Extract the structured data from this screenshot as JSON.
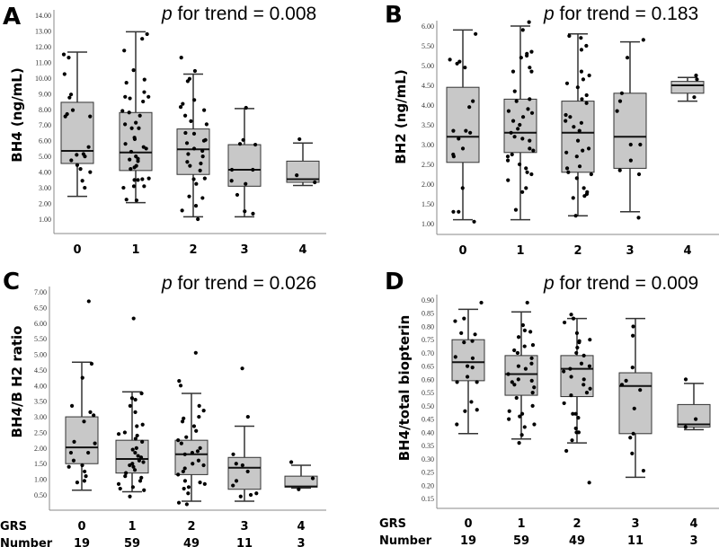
{
  "chart_data": [
    {
      "type": "box",
      "letter": "A",
      "title_p": "p",
      "title_rest": " for trend = 0.008",
      "ylabel": "BH4 (ng/mL)",
      "ylim": [
        1,
        14
      ],
      "ticks": [
        "1.00",
        "2.00",
        "3.00",
        "4.00",
        "5.00",
        "6.00",
        "7.00",
        "8.00",
        "9.00",
        "10.00",
        "11.00",
        "12.00",
        "13.00",
        "14.00"
      ],
      "categories": [
        "0",
        "1",
        "2",
        "3",
        "4"
      ],
      "boxes": [
        {
          "whisker_low": 2.45,
          "q1": 4.55,
          "median": 5.35,
          "q3": 8.45,
          "whisker_high": 11.65,
          "points": [
            11.5,
            11.3,
            10.25,
            8.95,
            8.75,
            7.55,
            7.55,
            7.7,
            7.95,
            5.6,
            5.15,
            5.0,
            5.1,
            4.75,
            4.45,
            4.2,
            4.0,
            3.45,
            3.0
          ]
        },
        {
          "whisker_low": 2.05,
          "q1": 4.1,
          "median": 5.25,
          "q3": 7.8,
          "whisker_high": 12.95,
          "points": [
            12.8,
            12.5,
            11.75,
            10.5,
            9.9,
            9.7,
            9.1,
            8.8,
            8.8,
            8.7,
            8.5,
            7.9,
            7.8,
            7.6,
            7.15,
            7.05,
            6.8,
            6.8,
            6.2,
            6.1,
            5.8,
            5.6,
            5.5,
            5.3,
            5.0,
            4.85,
            4.8,
            4.7,
            4.4,
            4.3,
            4.2,
            3.6,
            3.55,
            3.5,
            3.5,
            3.1,
            3.1,
            3.0,
            2.25,
            2.2
          ]
        },
        {
          "whisker_low": 1.15,
          "q1": 3.85,
          "median": 5.45,
          "q3": 6.75,
          "whisker_high": 10.25,
          "points": [
            11.3,
            10.45,
            9.95,
            9.8,
            8.6,
            8.35,
            8.15,
            7.95,
            7.6,
            7.25,
            7.05,
            6.5,
            6.45,
            6.05,
            6.0,
            5.85,
            5.5,
            5.35,
            5.15,
            5.0,
            4.65,
            4.55,
            4.4,
            4.1,
            3.6,
            3.55,
            3.25,
            2.45,
            2.35,
            1.85,
            1.55,
            1.0
          ]
        },
        {
          "whisker_low": 1.15,
          "q1": 3.1,
          "median": 4.15,
          "q3": 5.75,
          "whisker_high": 8.05,
          "points": [
            8.1,
            6.05,
            5.8,
            5.75,
            4.15,
            4.15,
            3.45,
            3.25,
            2.55,
            1.5,
            1.35
          ]
        },
        {
          "whisker_low": 3.15,
          "q1": 3.35,
          "median": 3.55,
          "q3": 4.7,
          "whisker_high": 5.85,
          "points": [
            6.1,
            3.8,
            3.35
          ]
        }
      ]
    },
    {
      "type": "box",
      "letter": "B",
      "title_p": "p",
      "title_rest": " for trend = 0.183",
      "ylabel": "BH2 (ng/mL)",
      "ylim": [
        1,
        6
      ],
      "ticks": [
        "1.00",
        "1.50",
        "2.00",
        "2.50",
        "3.00",
        "3.50",
        "4.00",
        "4.50",
        "5.00",
        "5.50",
        "6.00"
      ],
      "categories": [
        "0",
        "1",
        "2",
        "3",
        "4"
      ],
      "boxes": [
        {
          "whisker_low": 1.1,
          "q1": 2.55,
          "median": 3.2,
          "q3": 4.45,
          "whisker_high": 5.9,
          "points": [
            5.8,
            5.15,
            5.1,
            5.05,
            4.95,
            4.1,
            3.95,
            3.35,
            3.35,
            3.3,
            3.15,
            2.9,
            2.75,
            2.7,
            1.9,
            1.3,
            1.3,
            1.05
          ]
        },
        {
          "whisker_low": 1.1,
          "q1": 2.8,
          "median": 3.3,
          "q3": 4.15,
          "whisker_high": 6.0,
          "points": [
            6.1,
            5.9,
            5.35,
            5.3,
            5.25,
            5.2,
            4.95,
            4.85,
            4.85,
            4.35,
            4.15,
            4.1,
            3.9,
            3.85,
            3.8,
            3.7,
            3.6,
            3.5,
            3.4,
            3.3,
            3.2,
            3.15,
            3.1,
            2.9,
            2.85,
            2.75,
            2.7,
            2.6,
            2.5,
            2.4,
            2.3,
            2.25,
            2.1,
            1.9,
            1.8,
            1.35
          ]
        },
        {
          "whisker_low": 1.2,
          "q1": 2.3,
          "median": 3.3,
          "q3": 4.1,
          "whisker_high": 5.8,
          "points": [
            5.75,
            5.7,
            5.5,
            5.4,
            4.85,
            4.75,
            4.65,
            4.55,
            4.45,
            4.25,
            4.15,
            4.05,
            3.75,
            3.7,
            3.6,
            3.55,
            3.45,
            3.35,
            3.1,
            2.9,
            2.85,
            2.8,
            2.7,
            2.45,
            2.4,
            2.3,
            2.25,
            2.15,
            1.9,
            1.8,
            1.75,
            1.7,
            1.65,
            1.2
          ]
        },
        {
          "whisker_low": 1.3,
          "q1": 2.4,
          "median": 3.2,
          "q3": 4.3,
          "whisker_high": 5.6,
          "points": [
            5.65,
            5.2,
            4.3,
            4.1,
            3.85,
            3.0,
            3.0,
            2.6,
            2.35,
            2.25,
            1.15
          ]
        },
        {
          "whisker_low": 4.1,
          "q1": 4.3,
          "median": 4.5,
          "q3": 4.6,
          "whisker_high": 4.7,
          "points": [
            4.75,
            4.65,
            4.2
          ]
        }
      ]
    },
    {
      "type": "box",
      "letter": "C",
      "title_p": "p",
      "title_rest": " for trend = 0.026",
      "ylabel": "BH4/B H2 ratio",
      "ylim": [
        0.5,
        7
      ],
      "ticks": [
        "0.50",
        "1.00",
        "1.50",
        "2.00",
        "2.50",
        "3.00",
        "3.50",
        "4.00",
        "4.50",
        "5.00",
        "5.50",
        "6.00",
        "6.50",
        "7.00"
      ],
      "categories": [
        "0",
        "1",
        "2",
        "3",
        "4"
      ],
      "boxes": [
        {
          "whisker_low": 0.65,
          "q1": 1.5,
          "median": 2.02,
          "q3": 3.0,
          "whisker_high": 4.75,
          "points": [
            6.7,
            4.7,
            4.25,
            3.35,
            3.15,
            3.05,
            2.85,
            2.2,
            2.15,
            1.85,
            1.85,
            1.6,
            1.45,
            1.4,
            1.25,
            1.1,
            0.95,
            0.9
          ]
        },
        {
          "whisker_low": 0.6,
          "q1": 1.2,
          "median": 1.65,
          "q3": 2.25,
          "whisker_high": 3.8,
          "points": [
            6.15,
            3.75,
            3.6,
            3.55,
            3.35,
            3.15,
            2.75,
            2.7,
            2.5,
            2.45,
            2.4,
            2.3,
            2.2,
            2.0,
            1.95,
            1.85,
            1.75,
            1.7,
            1.6,
            1.55,
            1.5,
            1.45,
            1.4,
            1.3,
            1.2,
            1.1,
            1.05,
            0.95,
            0.85,
            0.75,
            0.7,
            0.65,
            0.45
          ]
        },
        {
          "whisker_low": 0.3,
          "q1": 1.15,
          "median": 1.8,
          "q3": 2.25,
          "whisker_high": 3.75,
          "points": [
            5.05,
            4.15,
            4.0,
            3.35,
            3.2,
            3.0,
            2.95,
            2.85,
            2.7,
            2.55,
            2.35,
            2.25,
            2.15,
            2.0,
            1.9,
            1.85,
            1.8,
            1.6,
            1.5,
            1.45,
            1.35,
            1.25,
            1.15,
            0.95,
            0.9,
            0.85,
            0.75,
            0.7,
            0.55,
            0.25,
            0.2
          ]
        },
        {
          "whisker_low": 0.3,
          "q1": 0.68,
          "median": 1.37,
          "q3": 1.7,
          "whisker_high": 2.7,
          "points": [
            4.55,
            3.0,
            1.8,
            1.5,
            1.45,
            1.25,
            0.95,
            0.8,
            0.55,
            0.5,
            0.45
          ]
        },
        {
          "whisker_low": 0.72,
          "q1": 0.75,
          "median": 0.77,
          "q3": 1.1,
          "whisker_high": 1.45,
          "points": [
            1.55,
            1.03,
            0.68
          ]
        }
      ],
      "row_labels": {
        "grs": "GRS",
        "number": "Number"
      },
      "numbers": [
        "19",
        "59",
        "49",
        "11",
        "3"
      ]
    },
    {
      "type": "box",
      "letter": "D",
      "title_p": "p",
      "title_rest": " for trend = 0.009",
      "ylabel": "BH4/total biopterin",
      "ylim": [
        0.15,
        0.9
      ],
      "ticks": [
        "0.15",
        "0.20",
        "0.25",
        "0.30",
        "0.35",
        "0.40",
        "0.45",
        "0.50",
        "0.55",
        "0.60",
        "0.65",
        "0.70",
        "0.75",
        "0.80",
        "0.85",
        "0.90"
      ],
      "categories": [
        "0",
        "1",
        "2",
        "3",
        "4"
      ],
      "boxes": [
        {
          "whisker_low": 0.395,
          "q1": 0.595,
          "median": 0.665,
          "q3": 0.75,
          "whisker_high": 0.865,
          "points": [
            0.89,
            0.83,
            0.82,
            0.77,
            0.775,
            0.745,
            0.74,
            0.685,
            0.68,
            0.65,
            0.645,
            0.61,
            0.59,
            0.59,
            0.515,
            0.485,
            0.48,
            0.43
          ]
        },
        {
          "whisker_low": 0.375,
          "q1": 0.54,
          "median": 0.62,
          "q3": 0.69,
          "whisker_high": 0.855,
          "points": [
            0.89,
            0.805,
            0.785,
            0.78,
            0.76,
            0.73,
            0.725,
            0.71,
            0.7,
            0.7,
            0.68,
            0.66,
            0.65,
            0.64,
            0.62,
            0.6,
            0.595,
            0.59,
            0.58,
            0.57,
            0.55,
            0.53,
            0.5,
            0.48,
            0.47,
            0.46,
            0.45,
            0.43,
            0.42,
            0.39,
            0.36
          ]
        },
        {
          "whisker_low": 0.36,
          "q1": 0.535,
          "median": 0.64,
          "q3": 0.69,
          "whisker_high": 0.83,
          "points": [
            0.845,
            0.83,
            0.815,
            0.775,
            0.75,
            0.745,
            0.74,
            0.72,
            0.7,
            0.69,
            0.66,
            0.65,
            0.64,
            0.63,
            0.61,
            0.6,
            0.58,
            0.565,
            0.55,
            0.54,
            0.51,
            0.47,
            0.47,
            0.455,
            0.415,
            0.4,
            0.4,
            0.37,
            0.33,
            0.21
          ]
        },
        {
          "whisker_low": 0.23,
          "q1": 0.395,
          "median": 0.575,
          "q3": 0.625,
          "whisker_high": 0.83,
          "points": [
            0.8,
            0.765,
            0.645,
            0.595,
            0.58,
            0.56,
            0.49,
            0.395,
            0.38,
            0.32,
            0.255
          ]
        },
        {
          "whisker_low": 0.41,
          "q1": 0.42,
          "median": 0.43,
          "q3": 0.505,
          "whisker_high": 0.585,
          "points": [
            0.6,
            0.45,
            0.42
          ]
        }
      ],
      "row_labels": {
        "grs": "GRS",
        "number": "Number"
      },
      "numbers": [
        "19",
        "59",
        "49",
        "11",
        "3"
      ]
    }
  ],
  "colors": {
    "box_fill": "#c8c8c8",
    "line": "#333333",
    "point": "#000000",
    "axis": "#888888"
  }
}
